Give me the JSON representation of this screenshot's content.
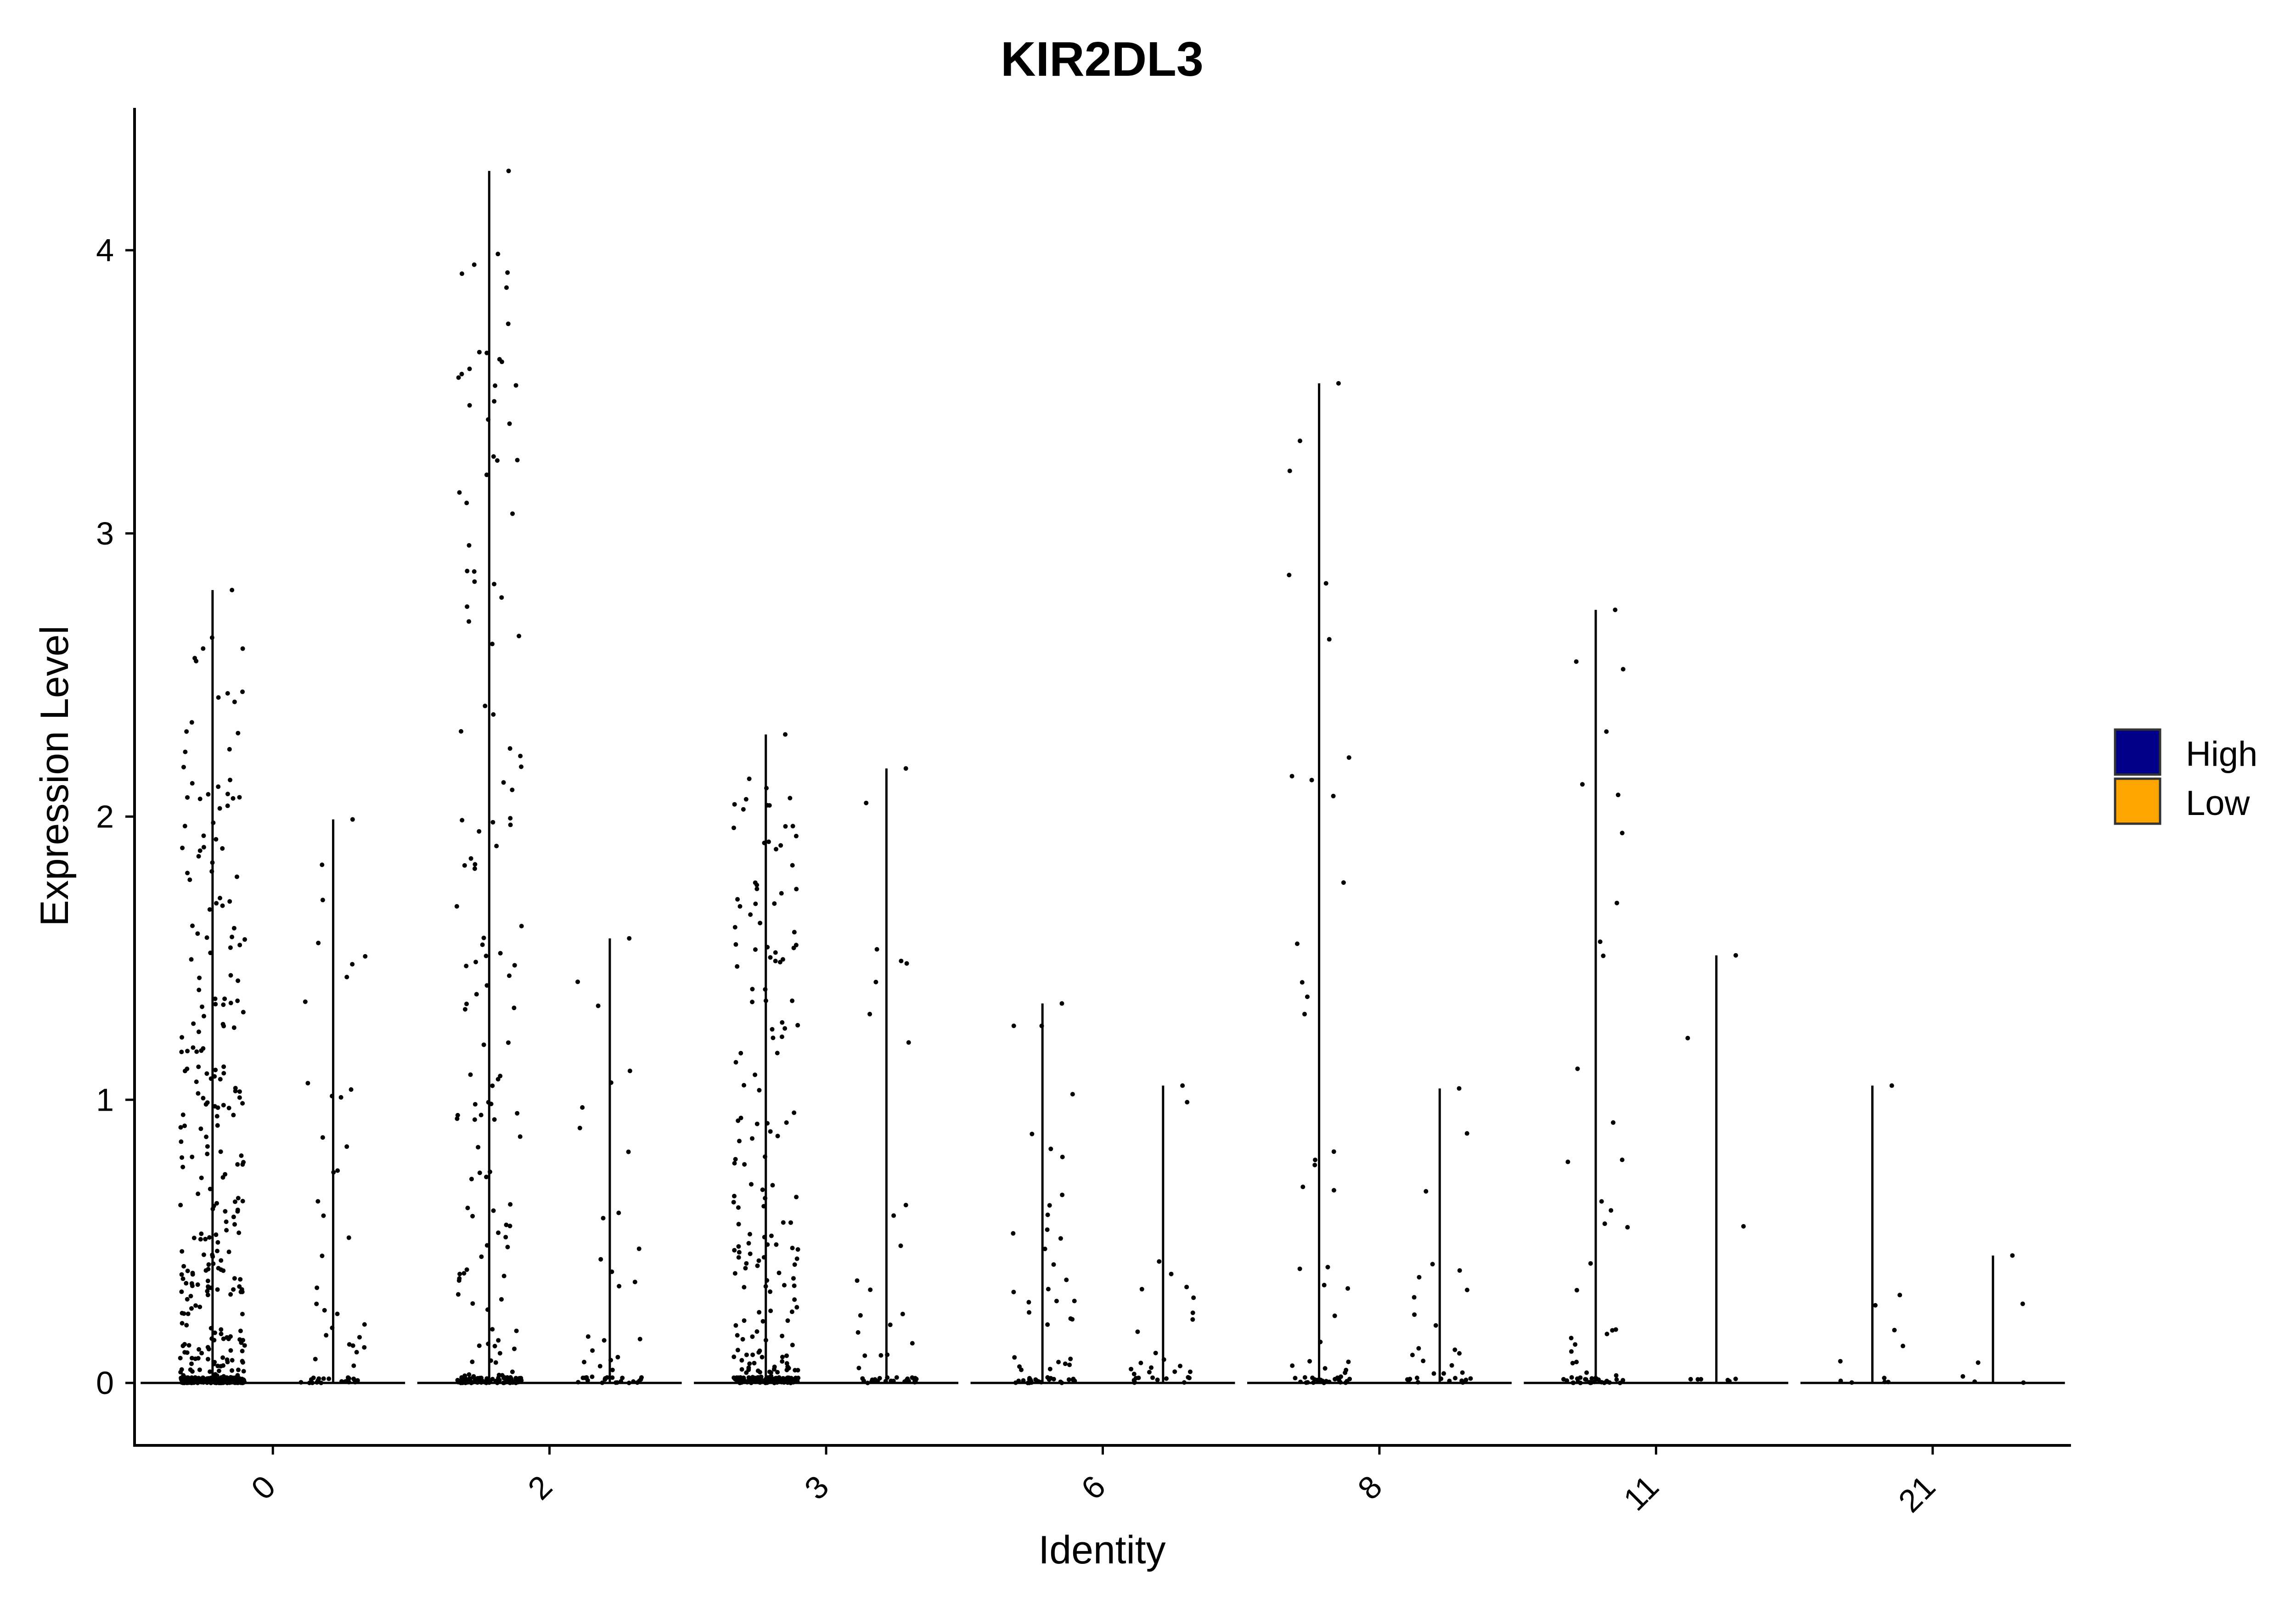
{
  "chart_data": {
    "type": "violin",
    "title": "KIR2DL3",
    "xlabel": "Identity",
    "ylabel": "Expression Level",
    "categories": [
      "0",
      "2",
      "3",
      "6",
      "8",
      "11",
      "21"
    ],
    "ylim": [
      -0.22,
      4.5
    ],
    "yticks": [
      0,
      1,
      2,
      3,
      4
    ],
    "grid": false,
    "legend_position": "right",
    "series": [
      {
        "name": "High",
        "color": "#00008B",
        "max_values": [
          2.8,
          4.28,
          2.29,
          1.34,
          3.53,
          2.73,
          1.05
        ],
        "n_points": [
          460,
          220,
          270,
          60,
          55,
          55,
          10
        ]
      },
      {
        "name": "Low",
        "color": "#FFA500",
        "max_values": [
          1.99,
          1.57,
          2.17,
          1.05,
          1.04,
          1.51,
          0.45
        ],
        "n_points": [
          55,
          45,
          45,
          30,
          30,
          8,
          5
        ]
      }
    ]
  }
}
